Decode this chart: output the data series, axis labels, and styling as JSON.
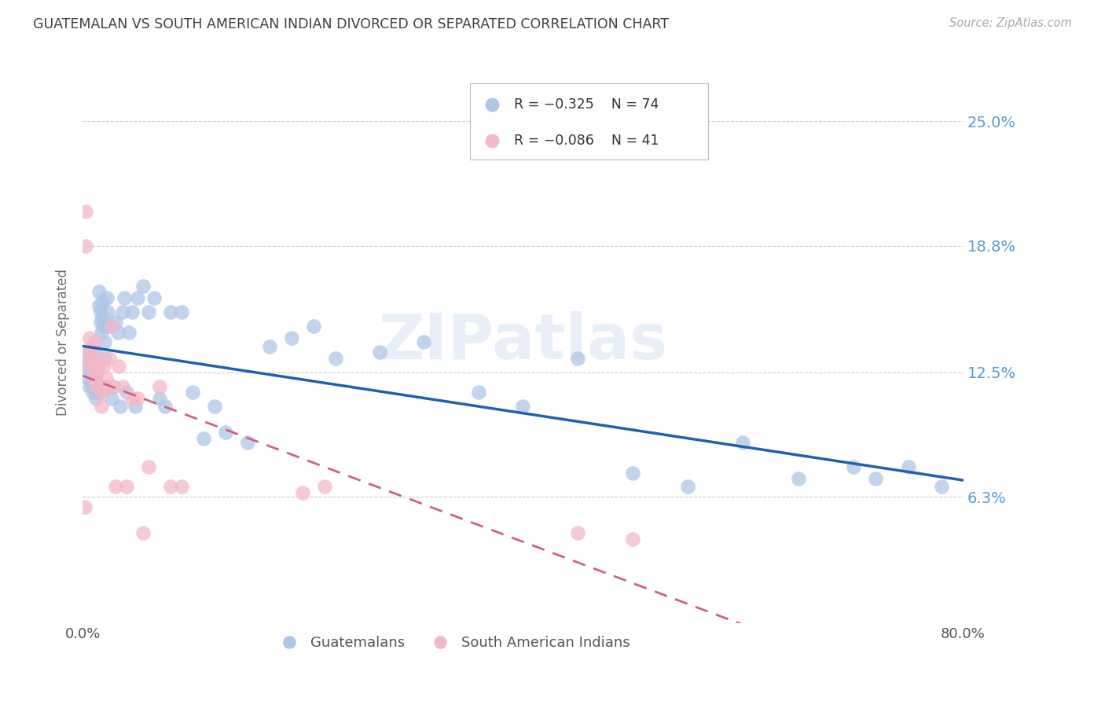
{
  "title": "GUATEMALAN VS SOUTH AMERICAN INDIAN DIVORCED OR SEPARATED CORRELATION CHART",
  "source": "Source: ZipAtlas.com",
  "ylabel": "Divorced or Separated",
  "xmin": 0.0,
  "xmax": 0.8,
  "ymin": 0.0,
  "ymax": 0.28,
  "yticks": [
    0.063,
    0.125,
    0.188,
    0.25
  ],
  "ytick_labels": [
    "6.3%",
    "12.5%",
    "18.8%",
    "25.0%"
  ],
  "xticks": [
    0.0,
    0.2,
    0.4,
    0.6,
    0.8
  ],
  "xtick_labels": [
    "0.0%",
    "",
    "",
    "",
    "80.0%"
  ],
  "guatemalan_color": "#aec6e8",
  "south_american_color": "#f4b8c8",
  "trend_blue": "#2060b0",
  "trend_pink": "#d06080",
  "watermark": "ZIPatlas",
  "background_color": "#ffffff",
  "grid_color": "#cccccc",
  "axis_label_color": "#5b9bd5",
  "title_color": "#404040",
  "guatemalan_points_x": [
    0.003,
    0.004,
    0.005,
    0.005,
    0.006,
    0.007,
    0.007,
    0.008,
    0.008,
    0.009,
    0.009,
    0.01,
    0.01,
    0.011,
    0.011,
    0.012,
    0.012,
    0.013,
    0.013,
    0.014,
    0.015,
    0.015,
    0.016,
    0.016,
    0.017,
    0.018,
    0.018,
    0.019,
    0.02,
    0.02,
    0.022,
    0.023,
    0.025,
    0.026,
    0.028,
    0.03,
    0.032,
    0.034,
    0.036,
    0.038,
    0.04,
    0.042,
    0.045,
    0.048,
    0.05,
    0.055,
    0.06,
    0.065,
    0.07,
    0.075,
    0.08,
    0.09,
    0.1,
    0.11,
    0.12,
    0.13,
    0.15,
    0.17,
    0.19,
    0.21,
    0.23,
    0.27,
    0.31,
    0.36,
    0.4,
    0.45,
    0.5,
    0.55,
    0.6,
    0.65,
    0.7,
    0.72,
    0.75,
    0.78
  ],
  "guatemalan_points_y": [
    0.13,
    0.128,
    0.122,
    0.133,
    0.118,
    0.125,
    0.135,
    0.12,
    0.13,
    0.125,
    0.115,
    0.128,
    0.122,
    0.135,
    0.118,
    0.125,
    0.112,
    0.13,
    0.12,
    0.115,
    0.165,
    0.158,
    0.155,
    0.15,
    0.145,
    0.16,
    0.152,
    0.148,
    0.14,
    0.132,
    0.162,
    0.155,
    0.148,
    0.112,
    0.118,
    0.15,
    0.145,
    0.108,
    0.155,
    0.162,
    0.115,
    0.145,
    0.155,
    0.108,
    0.162,
    0.168,
    0.155,
    0.162,
    0.112,
    0.108,
    0.155,
    0.155,
    0.115,
    0.092,
    0.108,
    0.095,
    0.09,
    0.138,
    0.142,
    0.148,
    0.132,
    0.135,
    0.14,
    0.115,
    0.108,
    0.132,
    0.075,
    0.068,
    0.09,
    0.072,
    0.078,
    0.072,
    0.078,
    0.068
  ],
  "south_american_points_x": [
    0.002,
    0.003,
    0.003,
    0.004,
    0.005,
    0.006,
    0.007,
    0.008,
    0.009,
    0.01,
    0.01,
    0.011,
    0.012,
    0.013,
    0.014,
    0.015,
    0.016,
    0.017,
    0.018,
    0.019,
    0.02,
    0.021,
    0.022,
    0.024,
    0.026,
    0.028,
    0.03,
    0.033,
    0.036,
    0.04,
    0.045,
    0.05,
    0.055,
    0.06,
    0.07,
    0.08,
    0.09,
    0.2,
    0.22,
    0.45,
    0.5
  ],
  "south_american_points_y": [
    0.058,
    0.205,
    0.188,
    0.13,
    0.135,
    0.142,
    0.128,
    0.138,
    0.13,
    0.122,
    0.132,
    0.14,
    0.118,
    0.125,
    0.128,
    0.132,
    0.118,
    0.108,
    0.115,
    0.128,
    0.118,
    0.122,
    0.118,
    0.132,
    0.148,
    0.118,
    0.068,
    0.128,
    0.118,
    0.068,
    0.112,
    0.112,
    0.045,
    0.078,
    0.118,
    0.068,
    0.068,
    0.065,
    0.068,
    0.045,
    0.042
  ]
}
